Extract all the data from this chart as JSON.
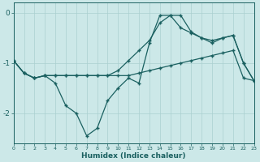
{
  "xlabel": "Humidex (Indice chaleur)",
  "background_color": "#cce8e8",
  "grid_color": "#aad0d0",
  "line_color": "#1a6060",
  "marker_color": "#1a6060",
  "x_values": [
    0,
    1,
    2,
    3,
    4,
    5,
    6,
    7,
    8,
    9,
    10,
    11,
    12,
    13,
    14,
    15,
    16,
    17,
    18,
    19,
    20,
    21,
    22,
    23
  ],
  "line1": [
    -0.95,
    -1.2,
    -1.3,
    -1.25,
    -1.25,
    -1.25,
    -1.25,
    -1.25,
    -1.25,
    -1.25,
    -1.25,
    -1.25,
    -1.2,
    -1.15,
    -1.1,
    -1.05,
    -1.0,
    -0.95,
    -0.9,
    -0.85,
    -0.8,
    -0.75,
    -1.3,
    -1.35
  ],
  "line2": [
    -0.95,
    -1.2,
    -1.3,
    -1.25,
    -1.4,
    -1.85,
    -2.0,
    -2.45,
    -2.3,
    -1.75,
    -1.5,
    -1.3,
    -1.4,
    -0.6,
    -0.05,
    -0.05,
    -0.05,
    -0.38,
    -0.5,
    -0.6,
    -0.5,
    -0.45,
    -1.0,
    -1.35
  ],
  "line3": [
    -0.95,
    -1.2,
    -1.3,
    -1.25,
    -1.25,
    -1.25,
    -1.25,
    -1.25,
    -1.25,
    -1.25,
    -1.15,
    -0.95,
    -0.75,
    -0.55,
    -0.2,
    -0.05,
    -0.3,
    -0.4,
    -0.5,
    -0.55,
    -0.5,
    -0.45,
    -1.0,
    -1.35
  ],
  "xlim": [
    0,
    23
  ],
  "ylim": [
    -2.6,
    0.2
  ],
  "yticks": [
    0,
    -1,
    -2
  ],
  "xticks": [
    0,
    1,
    2,
    3,
    4,
    5,
    6,
    7,
    8,
    9,
    10,
    11,
    12,
    13,
    14,
    15,
    16,
    17,
    18,
    19,
    20,
    21,
    22,
    23
  ]
}
